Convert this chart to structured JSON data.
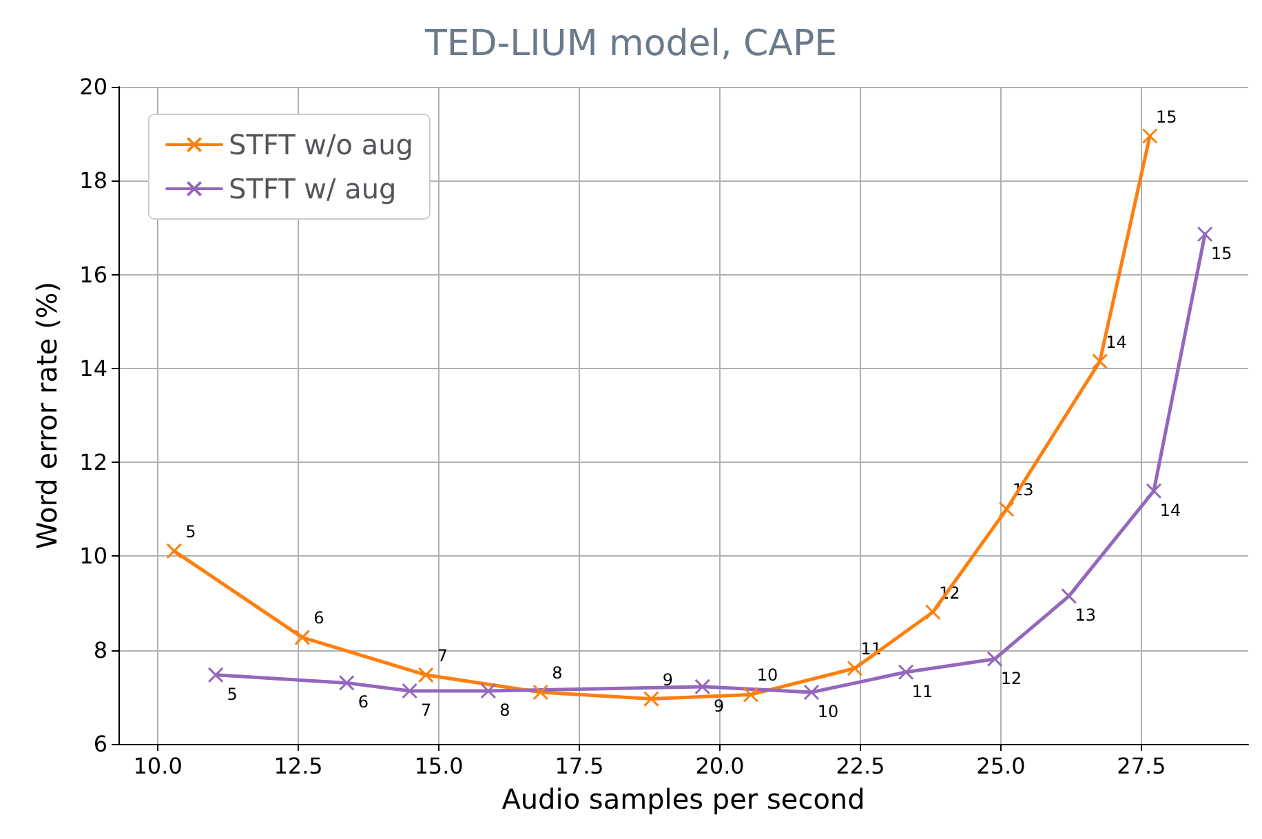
{
  "chart_data": {
    "type": "line",
    "title": "TED-LIUM model, CAPE",
    "xlabel": "Audio samples per second",
    "ylabel": "Word error rate (%)",
    "xlim": [
      9.3,
      29.4
    ],
    "xticks": [
      {
        "value": 10,
        "label": "10.0"
      },
      12.5,
      {
        "value": 15,
        "label": "15.0"
      },
      17.5,
      {
        "value": 20,
        "label": "20.0"
      },
      22.5,
      {
        "value": 25,
        "label": "25.0"
      },
      27.5
    ],
    "ylim": [
      6,
      20
    ],
    "yticks": [
      6,
      8,
      10,
      12,
      14,
      16,
      18,
      20
    ],
    "grid": true,
    "legend": "top left",
    "marker": "cross",
    "line_style": "solid",
    "series": [
      {
        "name": "STFT w/o aug",
        "color": "#ff7f0e",
        "x": [
          10.29,
          12.57,
          14.77,
          16.81,
          18.78,
          20.55,
          22.4,
          23.79,
          25.1,
          26.76,
          27.65
        ],
        "values": [
          10.11,
          8.27,
          7.47,
          7.1,
          6.96,
          7.05,
          7.61,
          8.81,
          11.0,
          14.15,
          18.95
        ]
      },
      {
        "name": "STFT w/ aug",
        "color": "#9467bd",
        "x": [
          11.03,
          13.36,
          14.48,
          15.88,
          19.69,
          21.63,
          23.31,
          24.89,
          26.21,
          27.72,
          28.63
        ],
        "values": [
          7.47,
          7.3,
          7.13,
          7.13,
          7.22,
          7.1,
          7.53,
          7.81,
          9.15,
          11.39,
          16.86
        ]
      }
    ],
    "annotations": [
      {
        "text": "5",
        "x": 10.29,
        "y": 10.11
      },
      {
        "text": "6",
        "x": 12.57,
        "y": 8.27
      },
      {
        "text": "7",
        "x": 14.77,
        "y": 7.47
      },
      {
        "text": "8",
        "x": 16.81,
        "y": 7.1
      },
      {
        "text": "9",
        "x": 18.78,
        "y": 6.96
      },
      {
        "text": "10",
        "x": 20.55,
        "y": 7.05
      },
      {
        "text": "11",
        "x": 22.4,
        "y": 7.61
      },
      {
        "text": "12",
        "x": 23.79,
        "y": 8.81
      },
      {
        "text": "13",
        "x": 25.1,
        "y": 11.0
      },
      {
        "text": "14",
        "x": 26.76,
        "y": 14.15
      },
      {
        "text": "15",
        "x": 27.65,
        "y": 18.95
      },
      {
        "text": "5",
        "x": 11.03,
        "y": 7.47
      },
      {
        "text": "6",
        "x": 13.36,
        "y": 7.3
      },
      {
        "text": "7",
        "x": 14.48,
        "y": 7.13
      },
      {
        "text": "8",
        "x": 15.88,
        "y": 7.13
      },
      {
        "text": "9",
        "x": 19.69,
        "y": 7.22
      },
      {
        "text": "10",
        "x": 21.63,
        "y": 7.1
      },
      {
        "text": "11",
        "x": 23.31,
        "y": 7.53
      },
      {
        "text": "12",
        "x": 24.89,
        "y": 7.81
      },
      {
        "text": "13",
        "x": 26.21,
        "y": 9.15
      },
      {
        "text": "14",
        "x": 27.72,
        "y": 11.39
      },
      {
        "text": "15",
        "x": 28.63,
        "y": 16.86
      }
    ]
  }
}
